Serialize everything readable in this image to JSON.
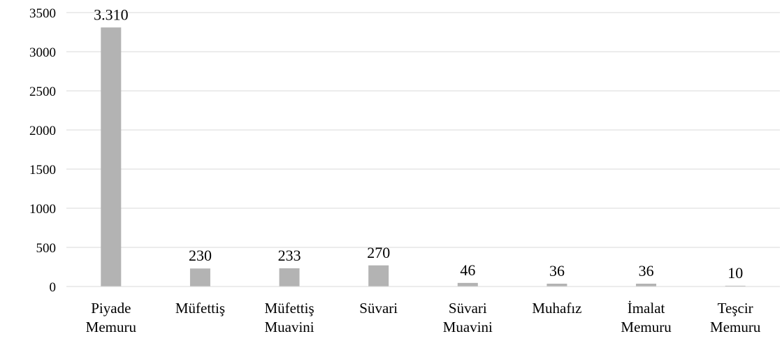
{
  "chart_data": {
    "type": "bar",
    "title": "",
    "xlabel": "",
    "ylabel": "",
    "ylim": [
      0,
      3500
    ],
    "yticks": [
      0,
      500,
      1000,
      1500,
      2000,
      2500,
      3000,
      3500
    ],
    "ytick_labels": [
      "0",
      "500",
      "1000",
      "1500",
      "2000",
      "2500",
      "3000",
      "3500"
    ],
    "grid": true,
    "legend": "none",
    "bar_color": "#b3b3b3",
    "grid_color": "#d9d9d9",
    "categories": [
      [
        "Piyade",
        "Memuru"
      ],
      [
        "Müfettiş"
      ],
      [
        "Müfettiş",
        "Muavini"
      ],
      [
        "Süvari"
      ],
      [
        "Süvari",
        "Muavini"
      ],
      [
        "Muhafız"
      ],
      [
        "İmalat",
        "Memuru"
      ],
      [
        "Teşcir",
        "Memuru"
      ]
    ],
    "values": [
      3310,
      230,
      233,
      270,
      46,
      36,
      36,
      10
    ],
    "value_labels": [
      "3.310",
      "230",
      "233",
      "270",
      "46",
      "36",
      "36",
      "10"
    ]
  }
}
